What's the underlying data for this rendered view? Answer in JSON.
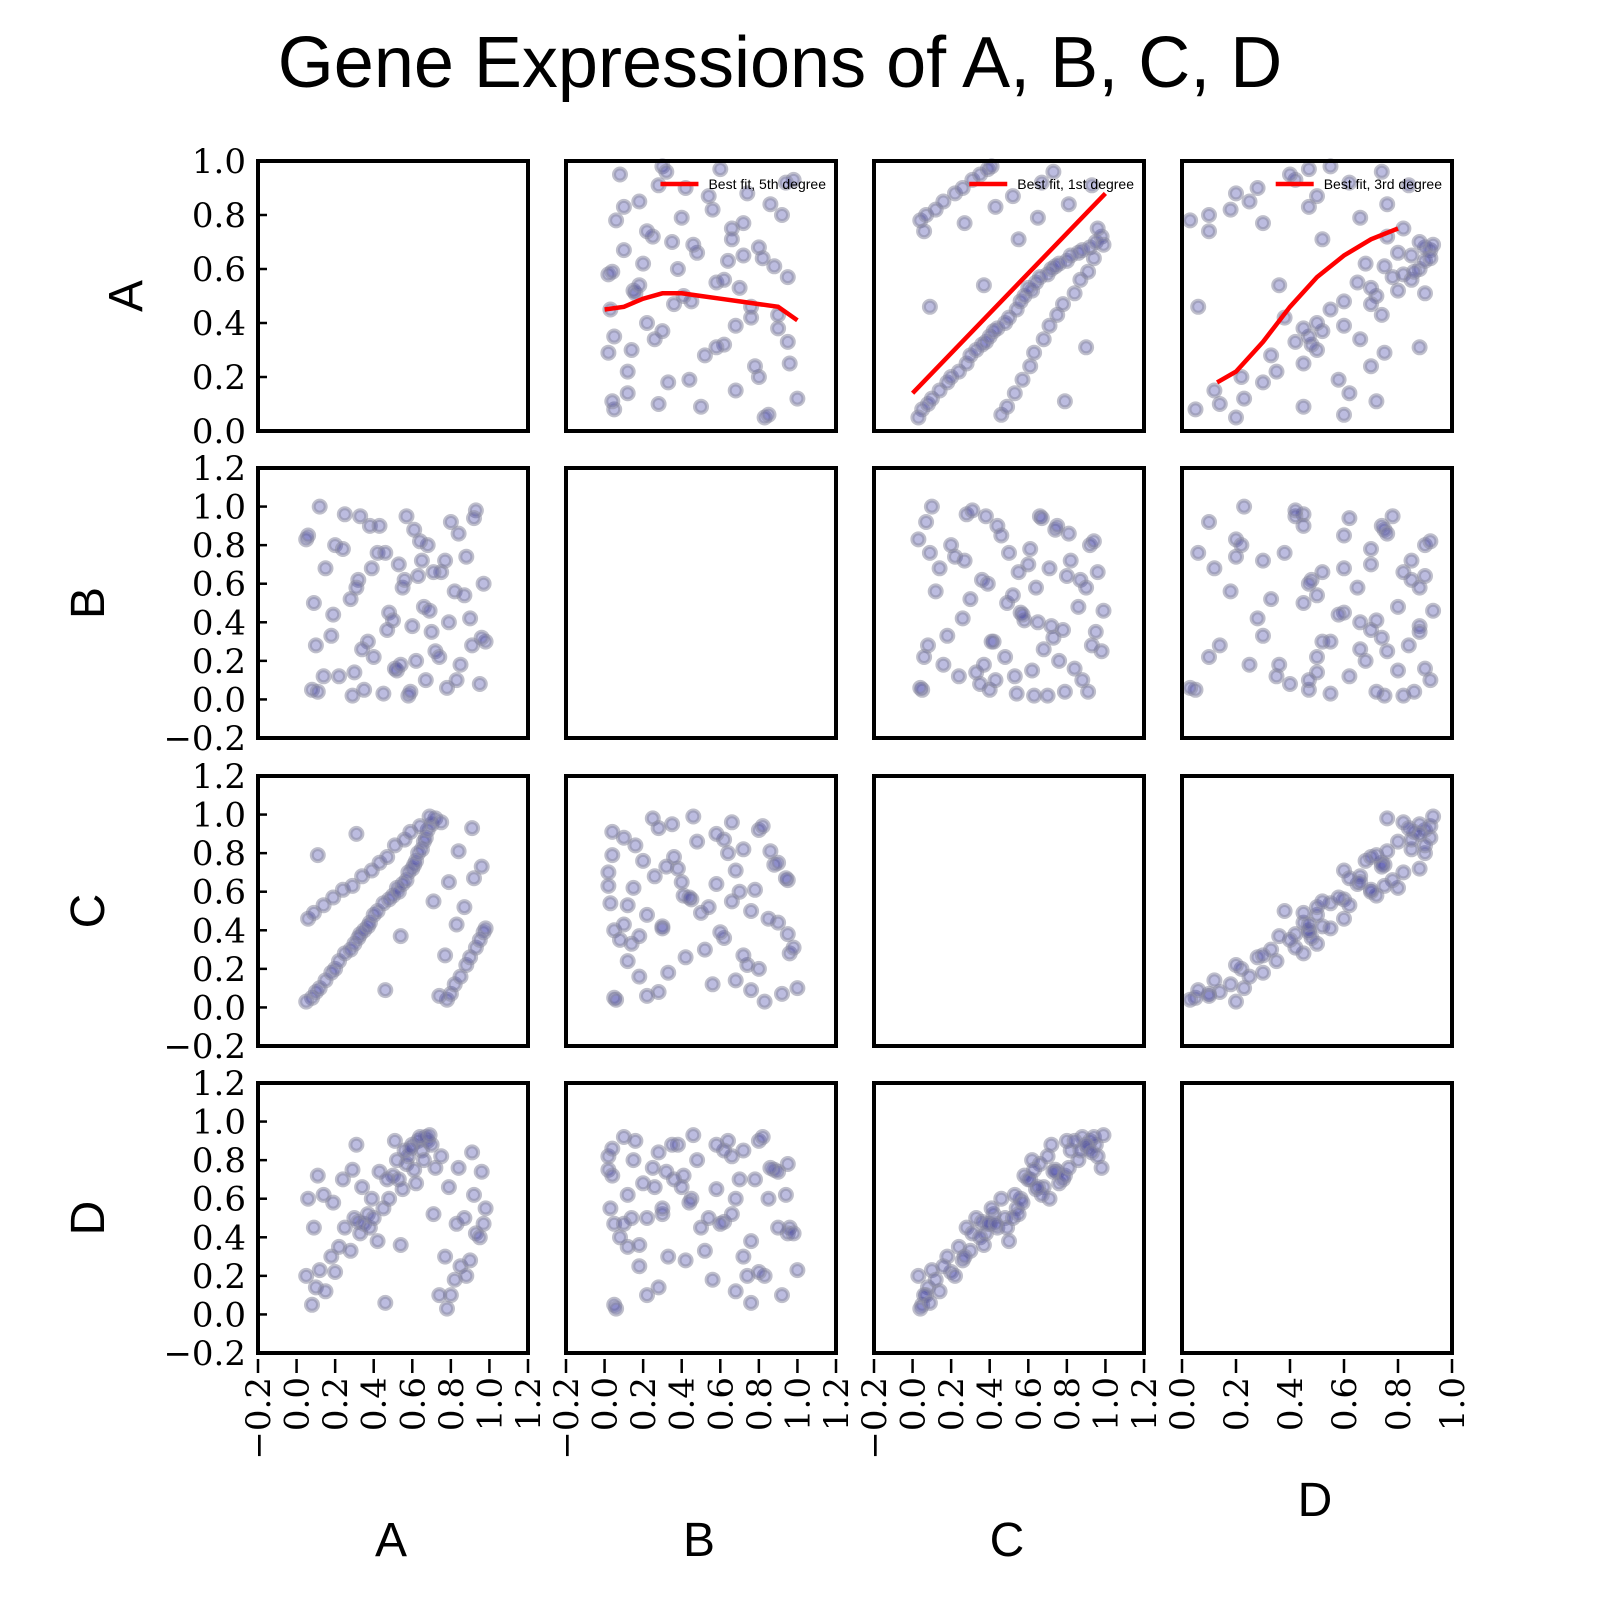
{
  "chart_data": {
    "type": "scatter",
    "title": "Gene Expressions of A, B, C, D",
    "variables": [
      "A",
      "B",
      "C",
      "D"
    ],
    "legend_placement": "top-right",
    "grid": false,
    "colors": {
      "points": "#3030a0",
      "point_edge": "#8a8aa0",
      "fit_line": "#ff0000"
    },
    "row_axes": [
      {
        "var": "A",
        "ylim": [
          0.0,
          1.0
        ],
        "ticks": [
          "0.0",
          "0.2",
          "0.4",
          "0.6",
          "0.8",
          "1.0"
        ]
      },
      {
        "var": "B",
        "ylim": [
          -0.2,
          1.2
        ],
        "ticks": [
          "−0.2",
          "0.0",
          "0.2",
          "0.4",
          "0.6",
          "0.8",
          "1.0",
          "1.2"
        ]
      },
      {
        "var": "C",
        "ylim": [
          -0.2,
          1.2
        ],
        "ticks": [
          "−0.2",
          "0.0",
          "0.2",
          "0.4",
          "0.6",
          "0.8",
          "1.0",
          "1.2"
        ]
      },
      {
        "var": "D",
        "ylim": [
          -0.2,
          1.2
        ],
        "ticks": [
          "−0.2",
          "0.0",
          "0.2",
          "0.4",
          "0.6",
          "0.8",
          "1.0",
          "1.2"
        ]
      }
    ],
    "col_axes": [
      {
        "var": "A",
        "xlim": [
          -0.2,
          1.2
        ],
        "ticks": [
          "−0.2",
          "0.0",
          "0.2",
          "0.4",
          "0.6",
          "0.8",
          "1.0",
          "1.2"
        ]
      },
      {
        "var": "B",
        "xlim": [
          -0.2,
          1.2
        ],
        "ticks": [
          "−0.2",
          "0.0",
          "0.2",
          "0.4",
          "0.6",
          "0.8",
          "1.0",
          "1.2"
        ]
      },
      {
        "var": "C",
        "xlim": [
          -0.2,
          1.2
        ],
        "ticks": [
          "−0.2",
          "0.0",
          "0.2",
          "0.4",
          "0.6",
          "0.8",
          "1.0",
          "1.2"
        ]
      },
      {
        "var": "D",
        "xlim": [
          0.0,
          1.0
        ],
        "ticks": [
          "0.0",
          "0.2",
          "0.4",
          "0.6",
          "0.8",
          "1.0"
        ]
      }
    ],
    "fits": [
      {
        "row": 0,
        "col": 1,
        "label": "Best fit, 5th degree",
        "x": [
          0.0,
          0.1,
          0.2,
          0.3,
          0.4,
          0.5,
          0.6,
          0.7,
          0.8,
          0.9,
          1.0
        ],
        "y": [
          0.45,
          0.46,
          0.49,
          0.51,
          0.51,
          0.5,
          0.49,
          0.48,
          0.47,
          0.46,
          0.41
        ]
      },
      {
        "row": 0,
        "col": 2,
        "label": "Best fit, 1st degree",
        "x": [
          0.0,
          1.0
        ],
        "y": [
          0.14,
          0.88
        ]
      },
      {
        "row": 0,
        "col": 3,
        "label": "Best fit, 3rd degree",
        "x": [
          0.13,
          0.2,
          0.3,
          0.4,
          0.5,
          0.6,
          0.7,
          0.8
        ],
        "y": [
          0.18,
          0.22,
          0.33,
          0.46,
          0.57,
          0.65,
          0.71,
          0.75
        ]
      }
    ],
    "samples": {
      "A": [
        0.08,
        0.05,
        0.1,
        0.12,
        0.15,
        0.18,
        0.2,
        0.22,
        0.25,
        0.28,
        0.3,
        0.32,
        0.33,
        0.35,
        0.37,
        0.38,
        0.4,
        0.42,
        0.45,
        0.48,
        0.5,
        0.52,
        0.53,
        0.55,
        0.57,
        0.58,
        0.6,
        0.61,
        0.62,
        0.63,
        0.65,
        0.66,
        0.67,
        0.68,
        0.7,
        0.72,
        0.75,
        0.78,
        0.8,
        0.82,
        0.85,
        0.88,
        0.9,
        0.93,
        0.95,
        0.97,
        0.98,
        0.06,
        0.09,
        0.14,
        0.19,
        0.24,
        0.29,
        0.34,
        0.39,
        0.43,
        0.47,
        0.51,
        0.56,
        0.59,
        0.64,
        0.69,
        0.74,
        0.77,
        0.83,
        0.87,
        0.92,
        0.96,
        0.11,
        0.31,
        0.46,
        0.54,
        0.71,
        0.79,
        0.84,
        0.91
      ],
      "B": [
        0.05,
        0.83,
        0.28,
        1.0,
        0.68,
        0.33,
        0.8,
        0.12,
        0.96,
        0.52,
        0.14,
        0.62,
        0.95,
        0.05,
        0.3,
        0.9,
        0.22,
        0.76,
        0.03,
        0.45,
        0.41,
        0.15,
        0.7,
        0.58,
        0.95,
        0.02,
        0.38,
        0.88,
        0.2,
        0.64,
        0.72,
        0.48,
        0.1,
        0.8,
        0.35,
        0.25,
        0.66,
        0.06,
        0.92,
        0.56,
        0.18,
        0.74,
        0.42,
        0.98,
        0.08,
        0.6,
        0.3,
        0.85,
        0.5,
        0.12,
        0.44,
        0.78,
        0.02,
        0.26,
        0.68,
        0.9,
        0.36,
        0.16,
        0.62,
        0.04,
        0.82,
        0.46,
        0.22,
        0.72,
        0.1,
        0.54,
        0.94,
        0.32,
        0.04,
        0.58,
        0.76,
        0.18,
        0.66,
        0.4,
        0.86,
        0.28
      ],
      "C": [
        0.05,
        0.03,
        0.08,
        0.1,
        0.14,
        0.18,
        0.2,
        0.24,
        0.28,
        0.3,
        0.33,
        0.36,
        0.38,
        0.4,
        0.42,
        0.44,
        0.48,
        0.5,
        0.54,
        0.56,
        0.58,
        0.62,
        0.6,
        0.64,
        0.66,
        0.7,
        0.72,
        0.74,
        0.76,
        0.8,
        0.82,
        0.86,
        0.88,
        0.92,
        0.95,
        0.98,
        0.96,
        0.04,
        0.07,
        0.12,
        0.16,
        0.22,
        0.26,
        0.31,
        0.35,
        0.39,
        0.41,
        0.46,
        0.49,
        0.53,
        0.57,
        0.61,
        0.63,
        0.68,
        0.71,
        0.75,
        0.78,
        0.84,
        0.87,
        0.91,
        0.94,
        0.99,
        0.06,
        0.27,
        0.43,
        0.52,
        0.67,
        0.73,
        0.79,
        0.9,
        0.09,
        0.37,
        0.55,
        0.65,
        0.81,
        0.93
      ],
      "D": [
        0.05,
        0.2,
        0.14,
        0.23,
        0.12,
        0.3,
        0.22,
        0.35,
        0.45,
        0.33,
        0.5,
        0.48,
        0.42,
        0.47,
        0.52,
        0.45,
        0.5,
        0.38,
        0.55,
        0.6,
        0.72,
        0.8,
        0.7,
        0.65,
        0.78,
        0.82,
        0.88,
        0.75,
        0.68,
        0.9,
        0.85,
        0.8,
        0.92,
        0.9,
        0.88,
        0.76,
        0.82,
        0.03,
        0.1,
        0.18,
        0.25,
        0.2,
        0.28,
        0.42,
        0.4,
        0.47,
        0.55,
        0.6,
        0.45,
        0.62,
        0.58,
        0.7,
        0.75,
        0.66,
        0.6,
        0.74,
        0.7,
        0.9,
        0.85,
        0.86,
        0.92,
        0.93,
        0.1,
        0.3,
        0.47,
        0.5,
        0.62,
        0.74,
        0.72,
        0.88,
        0.06,
        0.36,
        0.52,
        0.66,
        0.76,
        0.84
      ]
    }
  }
}
